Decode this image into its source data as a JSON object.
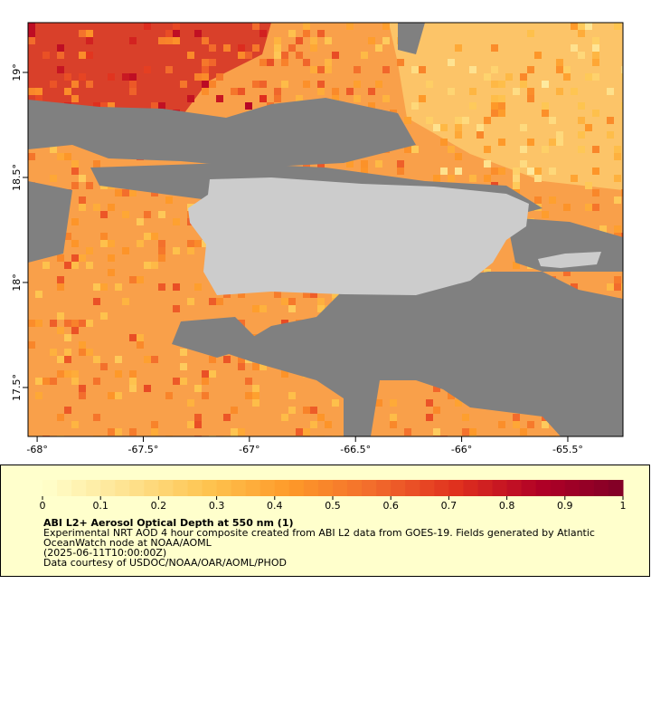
{
  "chart_data": {
    "type": "map",
    "xlim": [
      -68.043,
      -65.24
    ],
    "ylim": [
      17.267,
      19.237
    ],
    "xticks": [
      {
        "value": -68,
        "label": "-68°"
      },
      {
        "value": -67.5,
        "label": "-67.5°"
      },
      {
        "value": -67,
        "label": "-67°"
      },
      {
        "value": -66.5,
        "label": "-66.5°"
      },
      {
        "value": -66,
        "label": "-66°"
      },
      {
        "value": -65.5,
        "label": "-65.5°"
      }
    ],
    "yticks": [
      {
        "value": 17.5,
        "label": "17.5°"
      },
      {
        "value": 18,
        "label": "18°"
      },
      {
        "value": 18.5,
        "label": "18.5°"
      },
      {
        "value": 19,
        "label": "19°"
      }
    ],
    "colorbar": {
      "range": [
        0,
        1
      ],
      "ticks": [
        0,
        0.1,
        0.2,
        0.3,
        0.4,
        0.5,
        0.6,
        0.7,
        0.8,
        0.9,
        1
      ],
      "colors": [
        "#ffffcc",
        "#fee391",
        "#fec44f",
        "#fe9929",
        "#f26b2c",
        "#e0301e",
        "#b10026",
        "#800026"
      ]
    },
    "title": "ABI L2+ Aerosol Optical Depth at 550 nm (1)",
    "description": [
      "Experimental NRT AOD 4 hour composite created from ABI L2 data from GOES-19. Fields generated by Atlantic",
      "OceanWatch node at NOAA/AOML",
      "(2025-06-11T10:00:00Z)",
      "Data courtesy of USDOC/NOAA/OAR/AOML/PHOD"
    ]
  }
}
